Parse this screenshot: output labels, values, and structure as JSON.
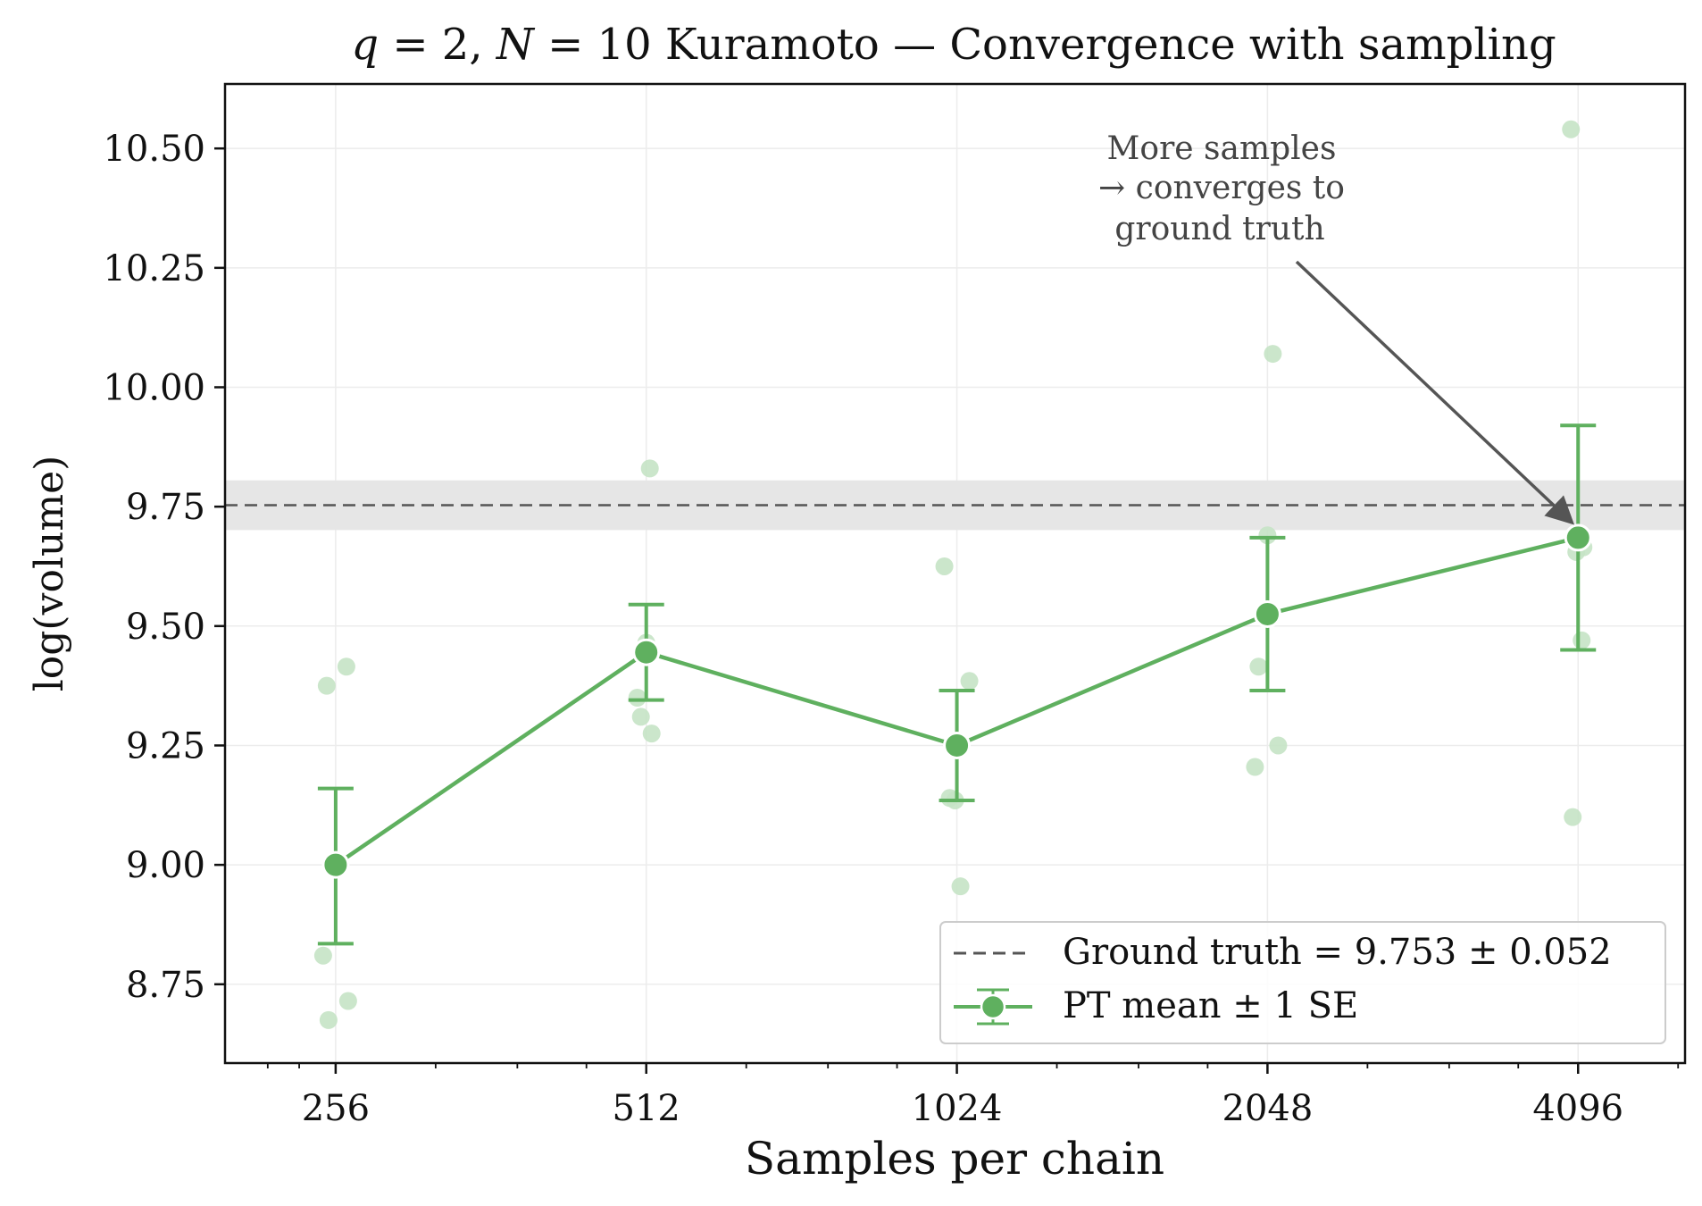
{
  "chart_data": {
    "type": "line",
    "title_parts": {
      "q_var": "q",
      "eq1": " = 2, ",
      "n_var": "N",
      "eq2": " = 10",
      "rest": " Kuramoto — Convergence with sampling"
    },
    "xlabel": "Samples per chain",
    "ylabel": "log(volume)",
    "x_scale": "log2",
    "categories": [
      "256",
      "512",
      "1024",
      "2048",
      "4096"
    ],
    "x": [
      256,
      512,
      1024,
      2048,
      4096
    ],
    "xlim": [
      200,
      5200
    ],
    "ylim": [
      8.585,
      10.635
    ],
    "y_ticks": [
      8.75,
      9.0,
      9.25,
      9.5,
      9.75,
      10.0,
      10.25,
      10.5
    ],
    "y_tick_labels": [
      "8.75",
      "9.00",
      "9.25",
      "9.50",
      "9.75",
      "10.00",
      "10.25",
      "10.50"
    ],
    "grid": true,
    "series": [
      {
        "name": "PT mean ± 1 SE",
        "color": "#5fb05f",
        "values": [
          9.0,
          9.445,
          9.25,
          9.525,
          9.685
        ],
        "err_low": [
          8.835,
          9.345,
          9.135,
          9.365,
          9.45
        ],
        "err_high": [
          9.16,
          9.545,
          9.365,
          9.685,
          9.92
        ]
      }
    ],
    "raw_samples": [
      {
        "x": 256,
        "values": [
          9.375,
          9.415,
          8.81,
          8.715,
          8.675
        ]
      },
      {
        "x": 512,
        "values": [
          9.83,
          9.31,
          9.275,
          9.465,
          9.35
        ]
      },
      {
        "x": 1024,
        "values": [
          9.625,
          9.385,
          9.14,
          9.135,
          8.955
        ]
      },
      {
        "x": 2048,
        "values": [
          10.07,
          9.69,
          9.415,
          9.25,
          9.205
        ]
      },
      {
        "x": 4096,
        "values": [
          10.54,
          9.655,
          9.47,
          9.1,
          9.665
        ]
      }
    ],
    "raw_sample_color": "#c5e3c5",
    "ground_truth": {
      "value": 9.753,
      "band": 0.052,
      "line_color": "#555555",
      "band_color": "#e6e6e6"
    },
    "legend": {
      "position": "bottom-right",
      "entries": [
        "Ground truth = 9.753 ± 0.052",
        "PT mean ± 1 SE"
      ]
    },
    "annotation": {
      "lines": [
        "More samples",
        "→  converges to",
        "ground truth"
      ],
      "target_x": 4096,
      "target_y": 9.685,
      "color": "#444444"
    }
  }
}
